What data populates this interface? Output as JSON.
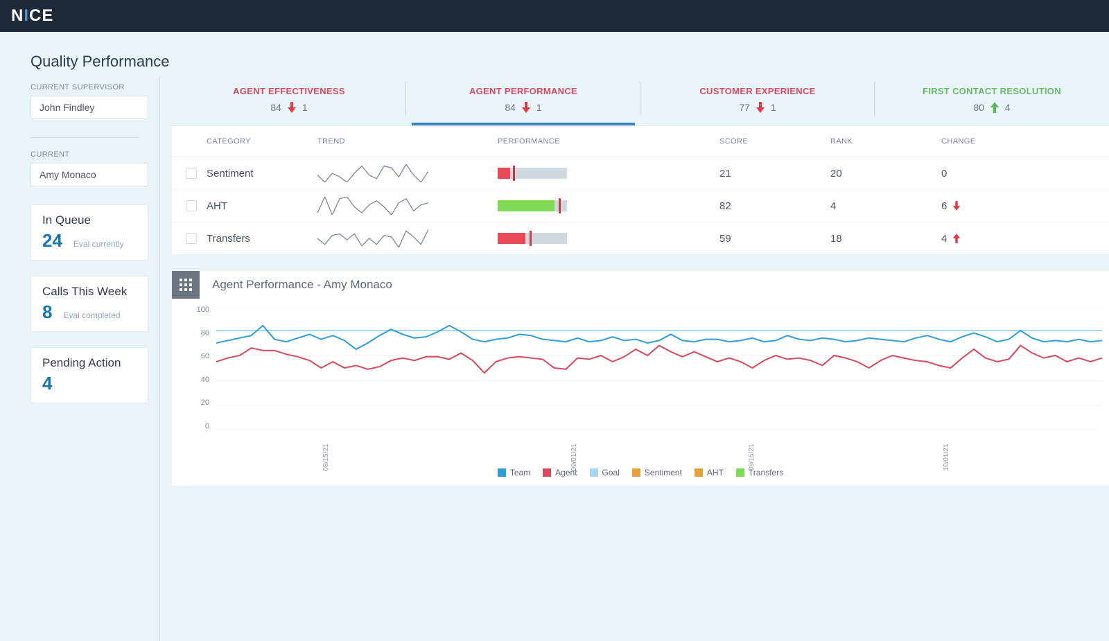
{
  "brand": {
    "text": "NICE"
  },
  "page_title": "Quality Performance",
  "sidebar": {
    "supervisor_label": "CURRENT SUPERVISOR",
    "supervisor_value": "John Findley",
    "current_label": "CURRENT",
    "current_value": "Amy Monaco",
    "cards": [
      {
        "title": "In Queue",
        "value": "24",
        "sub": "Eval currently"
      },
      {
        "title": "Calls This Week",
        "value": "8",
        "sub": "Eval completed"
      },
      {
        "title": "Pending Action",
        "value": "4",
        "sub": ""
      }
    ]
  },
  "kpis": [
    {
      "label": "AGENT EFFECTIVENESS",
      "score": "84",
      "delta": "1",
      "trend": "down",
      "color": "red",
      "active": false
    },
    {
      "label": "AGENT PERFORMANCE",
      "score": "84",
      "delta": "1",
      "trend": "down",
      "color": "red",
      "active": true
    },
    {
      "label": "CUSTOMER EXPERIENCE",
      "score": "77",
      "delta": "1",
      "trend": "down",
      "color": "red",
      "active": false
    },
    {
      "label": "FIRST CONTACT RESOLUTION",
      "score": "80",
      "delta": "4",
      "trend": "up",
      "color": "green",
      "active": false
    }
  ],
  "table": {
    "headers": {
      "category": "CATEGORY",
      "trend": "TREND",
      "performance": "PERFORMANCE",
      "score": "SCORE",
      "rank": "RANK",
      "change": "CHANGE"
    },
    "rows": [
      {
        "category": "Sentiment",
        "spark": [
          48,
          40,
          50,
          46,
          40,
          50,
          58,
          48,
          44,
          58,
          56,
          46,
          60,
          48,
          40,
          52
        ],
        "perf": {
          "fill_pct": 18,
          "fill_color": "#e84b55",
          "marker_pct": 22
        },
        "score": "21",
        "rank": "20",
        "change": "0",
        "change_dir": "none"
      },
      {
        "category": "AHT",
        "spark": [
          42,
          58,
          40,
          56,
          58,
          48,
          42,
          50,
          54,
          48,
          40,
          52,
          56,
          44,
          50,
          52
        ],
        "perf": {
          "fill_pct": 82,
          "fill_color": "#7ed957",
          "marker_pct": 88
        },
        "score": "82",
        "rank": "4",
        "change": "6",
        "change_dir": "down"
      },
      {
        "category": "Transfers",
        "spark": [
          48,
          40,
          52,
          54,
          46,
          54,
          38,
          48,
          40,
          52,
          50,
          36,
          58,
          50,
          40,
          60
        ],
        "perf": {
          "fill_pct": 40,
          "fill_color": "#e84b55",
          "marker_pct": 46
        },
        "score": "59",
        "rank": "18",
        "change": "4",
        "change_dir": "up"
      }
    ]
  },
  "chart": {
    "title": "Agent Performance - Amy Monaco",
    "ylim": [
      0,
      100
    ],
    "yticks": [
      0,
      20,
      40,
      60,
      80,
      100
    ],
    "grid_color": "#eef2f5",
    "background": "#ffffff",
    "x_labels": [
      {
        "pos_pct": 12,
        "text": "08/15/21"
      },
      {
        "pos_pct": 40,
        "text": "09/01/21"
      },
      {
        "pos_pct": 60,
        "text": "09/15/21"
      },
      {
        "pos_pct": 82,
        "text": "10/01/21"
      }
    ],
    "goal_y": 80,
    "series": {
      "team": {
        "color": "#2f9ed8",
        "width": 2,
        "data": [
          70,
          72,
          74,
          76,
          84,
          73,
          71,
          74,
          77,
          73,
          76,
          72,
          65,
          70,
          76,
          81,
          77,
          74,
          75,
          79,
          84,
          79,
          73,
          71,
          73,
          74,
          77,
          76,
          73,
          72,
          71,
          74,
          71,
          72,
          75,
          72,
          73,
          70,
          72,
          77,
          72,
          71,
          73,
          73,
          71,
          72,
          74,
          71,
          72,
          76,
          73,
          72,
          74,
          73,
          71,
          72,
          74,
          73,
          72,
          71,
          74,
          76,
          73,
          71,
          75,
          78,
          75,
          71,
          73,
          80,
          74,
          71,
          72,
          71,
          73,
          71,
          72
        ]
      },
      "agent": {
        "color": "#d84b5f",
        "width": 2,
        "data": [
          55,
          58,
          60,
          66,
          64,
          64,
          61,
          59,
          56,
          50,
          55,
          50,
          52,
          49,
          51,
          56,
          58,
          56,
          59,
          59,
          57,
          62,
          56,
          46,
          55,
          58,
          59,
          58,
          57,
          50,
          49,
          58,
          57,
          60,
          55,
          59,
          65,
          60,
          68,
          63,
          59,
          63,
          59,
          55,
          58,
          55,
          50,
          56,
          60,
          57,
          58,
          56,
          52,
          60,
          58,
          55,
          50,
          56,
          60,
          58,
          56,
          55,
          52,
          50,
          58,
          65,
          58,
          55,
          57,
          68,
          62,
          58,
          60,
          55,
          58,
          55,
          58
        ]
      },
      "goal": {
        "color": "#a7d8ef"
      }
    },
    "legend": [
      {
        "label": "Team",
        "color": "#2f9ed8"
      },
      {
        "label": "Agent",
        "color": "#d84b5f"
      },
      {
        "label": "Goal",
        "color": "#a7d8ef"
      },
      {
        "label": "Sentiment",
        "color": "#e8a23c"
      },
      {
        "label": "AHT",
        "color": "#e8a23c"
      },
      {
        "label": "Transfers",
        "color": "#7ed957"
      }
    ]
  },
  "colors": {
    "page_bg": "#e8f4f8",
    "topbar_bg": "#1e2a38",
    "accent_blue": "#1976a8",
    "tab_underline": "#3b82c4",
    "down_arrow": "#e53946",
    "up_arrow": "#5cb85c"
  }
}
